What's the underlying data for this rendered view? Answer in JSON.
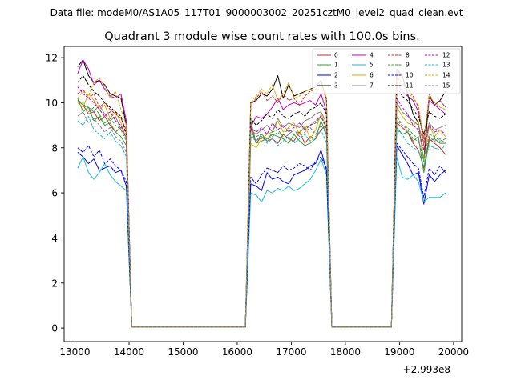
{
  "chart_data": {
    "type": "line",
    "suptitle": "Data file: modeM0/AS1A05_117T01_9000003002_20251cztM0_level2_quad_clean.evt",
    "title": "Quadrant 3 module wise count rates with 100.0s bins.",
    "xlabel": "",
    "ylabel": "",
    "xlim": [
      12800,
      20150
    ],
    "ylim": [
      -0.6,
      12.5
    ],
    "x_offset_label": "+2.993e8",
    "x_ticks": [
      13000,
      14000,
      15000,
      16000,
      17000,
      18000,
      19000,
      20000
    ],
    "x_tick_labels": [
      "13000",
      "14000",
      "15000",
      "16000",
      "17000",
      "18000",
      "19000",
      "20000"
    ],
    "y_ticks": [
      0,
      2,
      4,
      6,
      8,
      10,
      12
    ],
    "y_tick_labels": [
      "0",
      "2",
      "4",
      "6",
      "8",
      "10",
      "12"
    ],
    "legend_position": "top-right",
    "segments": [
      {
        "t0": 13050,
        "t1": 14150,
        "rise_x": null,
        "fall_x": 14150
      },
      {
        "t0": 16150,
        "t1": 17750,
        "rise_x": 16150,
        "fall_x": 17750
      },
      {
        "t0": 18850,
        "t1": 19850,
        "rise_x": 18850,
        "fall_x": null
      }
    ],
    "x": [
      13050,
      13150,
      13250,
      13350,
      13450,
      13550,
      13650,
      13750,
      13850,
      13950,
      14050,
      14150,
      14250,
      16150,
      16250,
      16350,
      16450,
      16550,
      16650,
      16750,
      16850,
      16950,
      17050,
      17150,
      17250,
      17350,
      17450,
      17550,
      17650,
      17750,
      17850,
      18850,
      18950,
      19050,
      19150,
      19250,
      19350,
      19450,
      19550,
      19650,
      19750,
      19850
    ],
    "series": [
      {
        "name": "0",
        "color": "#d62728",
        "dash": "solid",
        "values": [
          10.1,
          9.9,
          9.5,
          9.6,
          9.2,
          9.4,
          9.0,
          8.7,
          8.9,
          8.7,
          0.05,
          0.05,
          0.05,
          0.05,
          8.9,
          8.2,
          8.5,
          8.3,
          8.4,
          8.2,
          8.6,
          8.4,
          8.3,
          8.7,
          8.2,
          8.5,
          8.4,
          8.8,
          9.0,
          0.05,
          0.05,
          0.05,
          9.1,
          8.9,
          8.7,
          8.2,
          7.9,
          7.1,
          8.4,
          8.2,
          8.0,
          7.7
        ]
      },
      {
        "name": "1",
        "color": "#2ca02c",
        "dash": "solid",
        "values": [
          10.2,
          9.6,
          9.8,
          9.2,
          9.4,
          9.0,
          9.1,
          8.7,
          8.5,
          8.1,
          0.05,
          0.05,
          0.05,
          0.05,
          9.2,
          8.2,
          8.3,
          8.4,
          8.6,
          8.5,
          8.4,
          8.2,
          8.6,
          8.3,
          8.1,
          8.2,
          8.4,
          9.2,
          8.6,
          0.05,
          0.05,
          0.05,
          8.9,
          8.6,
          8.7,
          8.3,
          8.5,
          6.9,
          8.3,
          8.4,
          8.2,
          8.2
        ]
      },
      {
        "name": "2",
        "color": "#0000ff",
        "dash": "solid",
        "values": [
          7.8,
          7.6,
          7.3,
          7.5,
          7.0,
          7.1,
          7.2,
          6.9,
          7.0,
          6.3,
          0.05,
          0.05,
          0.05,
          0.05,
          6.4,
          6.3,
          6.1,
          6.9,
          6.6,
          6.7,
          6.5,
          6.4,
          6.8,
          6.9,
          7.0,
          7.2,
          7.3,
          7.9,
          7.0,
          0.05,
          0.05,
          0.05,
          8.1,
          7.7,
          7.3,
          6.8,
          6.9,
          5.5,
          6.8,
          6.5,
          6.8,
          7.0
        ]
      },
      {
        "name": "3",
        "color": "#000000",
        "dash": "solid",
        "values": [
          11.6,
          11.9,
          11.2,
          10.9,
          11.0,
          10.8,
          10.4,
          10.3,
          10.2,
          9.0,
          0.05,
          0.05,
          0.05,
          0.05,
          10.0,
          10.1,
          10.4,
          10.3,
          10.6,
          11.2,
          10.2,
          10.8,
          10.3,
          10.4,
          10.5,
          10.6,
          10.7,
          11.0,
          10.1,
          0.05,
          0.05,
          0.05,
          11.5,
          11.2,
          10.4,
          9.5,
          9.1,
          7.4,
          10.3,
          9.9,
          10.1,
          10.5
        ]
      },
      {
        "name": "4",
        "color": "#c000c0",
        "dash": "solid",
        "values": [
          11.3,
          11.9,
          11.5,
          10.8,
          11.0,
          10.6,
          10.3,
          10.2,
          10.4,
          9.2,
          0.05,
          0.05,
          0.05,
          0.05,
          8.9,
          9.4,
          9.3,
          9.5,
          9.8,
          10.2,
          9.7,
          9.9,
          10.0,
          9.9,
          10.0,
          10.1,
          9.9,
          10.4,
          9.6,
          0.05,
          0.05,
          0.05,
          10.9,
          10.5,
          10.3,
          10.1,
          9.6,
          8.4,
          10.1,
          9.9,
          9.7,
          9.5
        ]
      },
      {
        "name": "5",
        "color": "#17becf",
        "dash": "solid",
        "values": [
          7.1,
          7.6,
          6.9,
          6.6,
          6.9,
          7.3,
          6.8,
          6.5,
          6.3,
          6.1,
          0.05,
          0.05,
          0.05,
          0.05,
          6.0,
          5.9,
          5.6,
          6.1,
          6.0,
          6.2,
          6.1,
          6.3,
          6.1,
          6.2,
          6.4,
          6.6,
          7.0,
          7.5,
          6.8,
          0.05,
          0.05,
          0.05,
          7.6,
          6.7,
          6.6,
          6.8,
          6.5,
          5.6,
          5.8,
          5.8,
          5.8,
          6.0
        ]
      },
      {
        "name": "6",
        "color": "#d4b000",
        "dash": "solid",
        "values": [
          10.0,
          9.8,
          10.4,
          10.1,
          9.7,
          9.9,
          9.3,
          9.6,
          9.1,
          8.4,
          0.05,
          0.05,
          0.05,
          0.05,
          8.2,
          8.0,
          8.4,
          8.6,
          8.7,
          9.2,
          8.7,
          8.9,
          9.1,
          8.6,
          9.0,
          8.4,
          8.8,
          9.5,
          8.9,
          0.05,
          0.05,
          0.05,
          9.8,
          9.4,
          9.1,
          9.0,
          9.2,
          7.4,
          9.0,
          8.5,
          8.8,
          8.5
        ]
      },
      {
        "name": "7",
        "color": "#7f7f7f",
        "dash": "solid",
        "values": [
          10.1,
          9.9,
          9.8,
          9.6,
          9.9,
          9.5,
          9.2,
          9.4,
          8.8,
          8.5,
          0.05,
          0.05,
          0.05,
          0.05,
          8.8,
          8.6,
          8.8,
          9.0,
          8.7,
          9.3,
          8.9,
          9.1,
          9.0,
          8.9,
          9.2,
          9.3,
          9.5,
          9.6,
          9.1,
          0.05,
          0.05,
          0.05,
          10.0,
          9.6,
          9.4,
          9.2,
          9.0,
          8.2,
          9.1,
          8.8,
          8.9,
          9.0
        ]
      },
      {
        "name": "8",
        "color": "#d62728",
        "dash": "dashed",
        "values": [
          10.4,
          10.6,
          10.2,
          10.4,
          9.8,
          10.0,
          9.7,
          9.5,
          9.3,
          8.8,
          0.05,
          0.05,
          0.05,
          0.05,
          9.9,
          10.2,
          10.5,
          10.1,
          10.3,
          10.0,
          10.4,
          10.1,
          10.2,
          9.9,
          10.3,
          10.5,
          10.6,
          10.9,
          10.2,
          0.05,
          0.05,
          0.05,
          11.1,
          10.9,
          10.6,
          10.3,
          9.8,
          8.1,
          10.4,
          9.9,
          10.1,
          9.8
        ]
      },
      {
        "name": "9",
        "color": "#2ca02c",
        "dash": "dashed",
        "values": [
          10.1,
          10.0,
          9.6,
          9.8,
          9.5,
          9.1,
          9.3,
          9.0,
          8.8,
          8.3,
          0.05,
          0.05,
          0.05,
          0.05,
          8.4,
          8.5,
          8.6,
          8.3,
          8.7,
          8.8,
          8.5,
          8.9,
          8.6,
          8.7,
          8.9,
          9.0,
          9.1,
          9.4,
          8.8,
          0.05,
          0.05,
          0.05,
          9.4,
          9.0,
          8.9,
          8.6,
          8.4,
          7.4,
          8.6,
          8.5,
          8.3,
          8.4
        ]
      },
      {
        "name": "10",
        "color": "#0000ff",
        "dash": "dashed",
        "values": [
          8.0,
          7.8,
          8.1,
          7.6,
          7.9,
          7.3,
          7.5,
          7.2,
          7.0,
          6.5,
          0.05,
          0.05,
          0.05,
          0.05,
          6.7,
          6.4,
          6.8,
          7.1,
          7.0,
          6.9,
          7.2,
          7.0,
          7.1,
          7.3,
          7.2,
          7.0,
          7.4,
          7.6,
          7.1,
          0.05,
          0.05,
          0.05,
          8.2,
          7.9,
          7.6,
          7.3,
          7.1,
          5.8,
          7.1,
          6.8,
          7.2,
          6.9
        ]
      },
      {
        "name": "11",
        "color": "#000000",
        "dash": "dashed",
        "values": [
          10.9,
          11.2,
          10.8,
          10.5,
          10.3,
          10.0,
          9.8,
          9.6,
          9.4,
          8.6,
          0.05,
          0.05,
          0.05,
          0.05,
          9.3,
          9.0,
          9.2,
          9.5,
          9.3,
          9.7,
          9.4,
          9.3,
          9.5,
          9.6,
          9.4,
          9.7,
          9.8,
          10.0,
          9.5,
          0.05,
          0.05,
          0.05,
          10.7,
          10.3,
          10.1,
          9.7,
          9.4,
          8.6,
          9.6,
          9.4,
          9.3,
          9.5
        ]
      },
      {
        "name": "12",
        "color": "#c000c0",
        "dash": "dashed",
        "values": [
          10.7,
          10.4,
          10.2,
          10.0,
          9.7,
          9.4,
          9.6,
          9.2,
          9.0,
          8.4,
          0.05,
          0.05,
          0.05,
          0.05,
          8.9,
          8.7,
          8.9,
          8.6,
          9.1,
          8.8,
          9.0,
          8.7,
          8.9,
          9.1,
          8.8,
          9.0,
          9.2,
          9.4,
          8.9,
          0.05,
          0.05,
          0.05,
          10.2,
          9.8,
          9.5,
          9.0,
          8.8,
          7.9,
          9.0,
          8.7,
          8.8,
          8.6
        ]
      },
      {
        "name": "13",
        "color": "#17becf",
        "dash": "dashed",
        "values": [
          9.2,
          9.0,
          9.4,
          8.8,
          8.6,
          8.4,
          8.7,
          8.3,
          8.1,
          7.6,
          0.05,
          0.05,
          0.05,
          0.05,
          8.6,
          8.3,
          8.5,
          8.2,
          8.4,
          8.1,
          8.3,
          8.5,
          8.2,
          8.4,
          8.6,
          8.3,
          8.5,
          8.8,
          8.2,
          0.05,
          0.05,
          0.05,
          8.8,
          8.6,
          8.2,
          8.0,
          7.9,
          7.2,
          8.1,
          8.0,
          7.9,
          8.1
        ]
      },
      {
        "name": "14",
        "color": "#d4b000",
        "dash": "dashed",
        "values": [
          10.2,
          10.5,
          10.3,
          10.9,
          11.1,
          10.7,
          10.2,
          10.5,
          9.7,
          9.0,
          0.05,
          0.05,
          0.05,
          0.05,
          10.0,
          10.3,
          10.6,
          10.4,
          10.8,
          10.1,
          10.4,
          10.9,
          10.2,
          10.3,
          10.5,
          10.6,
          10.4,
          10.8,
          10.1,
          0.05,
          0.05,
          0.05,
          11.0,
          10.8,
          10.5,
          10.2,
          9.9,
          8.3,
          10.3,
          10.0,
          9.8,
          9.7
        ]
      },
      {
        "name": "15",
        "color": "#7f7f7f",
        "dash": "dashed",
        "values": [
          9.4,
          9.6,
          9.1,
          9.3,
          9.0,
          8.7,
          8.9,
          8.5,
          8.3,
          7.8,
          0.05,
          0.05,
          0.05,
          0.05,
          8.5,
          8.3,
          8.6,
          8.4,
          8.5,
          8.7,
          8.4,
          8.6,
          8.8,
          8.5,
          8.7,
          8.9,
          8.6,
          9.0,
          8.6,
          0.05,
          0.05,
          0.05,
          9.2,
          9.0,
          8.8,
          8.4,
          8.3,
          7.6,
          8.5,
          8.3,
          8.4,
          8.2
        ]
      }
    ]
  }
}
